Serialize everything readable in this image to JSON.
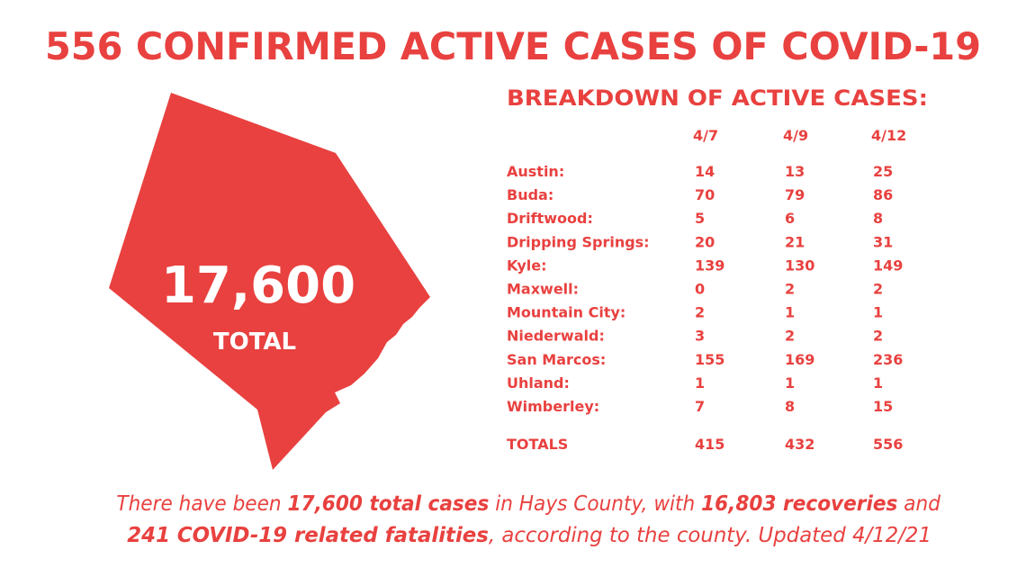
{
  "header": {
    "title": "556 CONFIRMED ACTIVE CASES OF COVID-19"
  },
  "map": {
    "total": "17,600",
    "label": "TOTAL"
  },
  "table": {
    "title": "BREAKDOWN OF ACTIVE CASES:",
    "columns": [
      "4/7",
      "4/9",
      "4/12"
    ],
    "rows": [
      [
        "Austin:",
        14,
        13,
        25
      ],
      [
        "Buda:",
        70,
        79,
        86
      ],
      [
        "Driftwood:",
        5,
        6,
        8
      ],
      [
        "Dripping Springs:",
        20,
        21,
        31
      ],
      [
        "Kyle:",
        139,
        130,
        149
      ],
      [
        "Maxwell:",
        0,
        2,
        2
      ],
      [
        "Mountain City:",
        2,
        1,
        1
      ],
      [
        "Niederwald:",
        3,
        2,
        2
      ],
      [
        "San Marcos:",
        155,
        169,
        236
      ],
      [
        "Uhland:",
        1,
        1,
        1
      ],
      [
        "Wimberley:",
        7,
        8,
        15
      ]
    ],
    "totals": [
      "TOTALS",
      415,
      432,
      556
    ]
  },
  "footer": {
    "line1": [
      "There have been ",
      "17,600 total cases",
      " in Hays County, with ",
      "16,803 recoveries",
      " and"
    ],
    "line2": [
      "241 COVID-19 related fatalities",
      ", according to the county. Updated 4/12/21"
    ]
  }
}
